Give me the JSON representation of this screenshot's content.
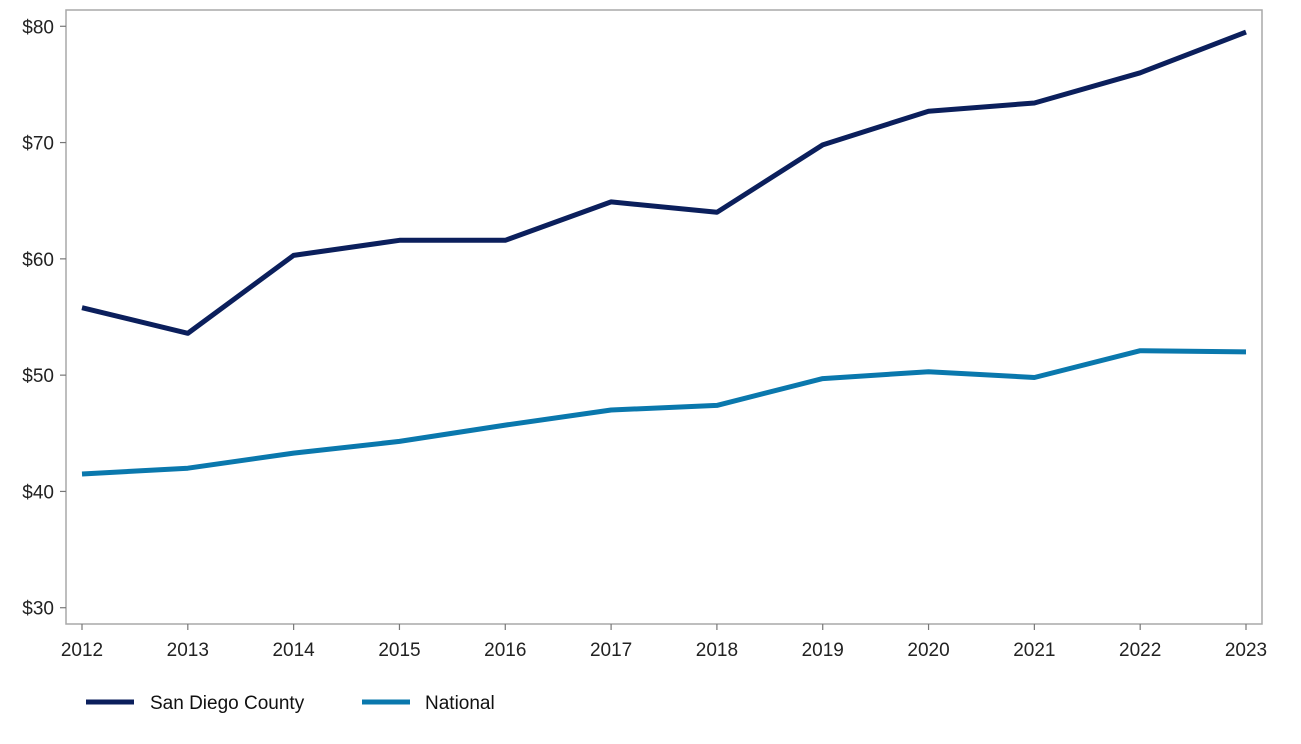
{
  "chart_data": {
    "type": "line",
    "title": "",
    "xlabel": "",
    "ylabel": "",
    "x": [
      2012,
      2013,
      2014,
      2015,
      2016,
      2017,
      2018,
      2019,
      2020,
      2021,
      2022,
      2023
    ],
    "x_tick_labels": [
      "2012",
      "2013",
      "2014",
      "2015",
      "2016",
      "2017",
      "2018",
      "2019",
      "2020",
      "2021",
      "2022",
      "2023"
    ],
    "ylim": [
      28.6,
      81.4
    ],
    "y_ticks": [
      30,
      40,
      50,
      60,
      70,
      80
    ],
    "y_tick_labels": [
      "$30",
      "$40",
      "$50",
      "$60",
      "$70",
      "$80"
    ],
    "grid": false,
    "legend_position": "bottom-left",
    "series": [
      {
        "name": "San Diego County",
        "color": "#0b1f5c",
        "values": [
          55.8,
          53.6,
          60.3,
          61.6,
          61.6,
          64.9,
          64.0,
          69.8,
          72.7,
          73.4,
          76.0,
          79.5
        ]
      },
      {
        "name": "National",
        "color": "#0a78ad",
        "values": [
          41.5,
          42.0,
          43.3,
          44.3,
          45.7,
          47.0,
          47.4,
          49.7,
          50.3,
          49.8,
          52.1,
          52.0
        ]
      }
    ]
  }
}
